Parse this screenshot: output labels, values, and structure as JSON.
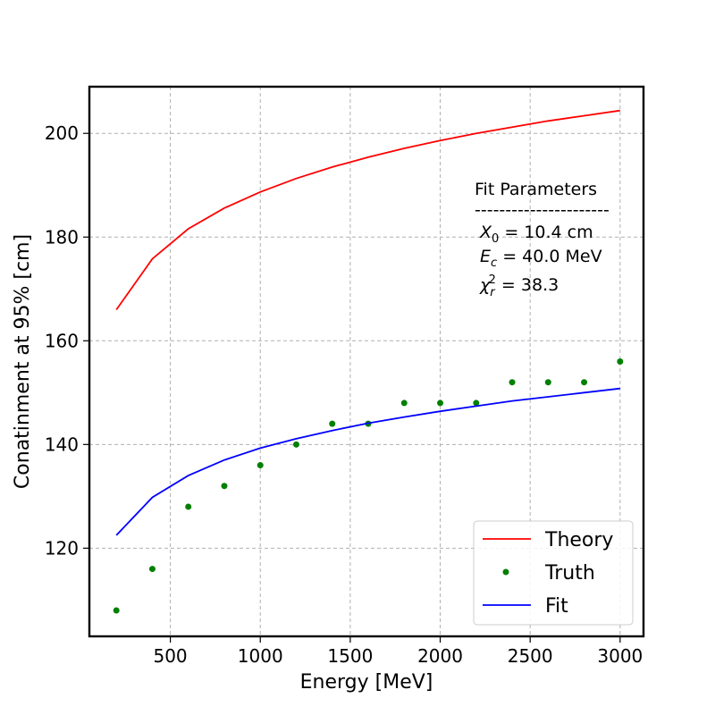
{
  "chart_data": {
    "type": "line",
    "title": "",
    "xlabel": "Energy [MeV]",
    "ylabel": "Conatinment at 95% [cm]",
    "xlim": [
      50,
      3130
    ],
    "ylim": [
      103,
      209
    ],
    "xticks": [
      500,
      1000,
      1500,
      2000,
      2500,
      3000
    ],
    "yticks": [
      120,
      140,
      160,
      180,
      200
    ],
    "grid": true,
    "legend_position": "bottom-right",
    "x": [
      200,
      400,
      600,
      800,
      1000,
      1200,
      1400,
      1600,
      1800,
      2000,
      2200,
      2400,
      2600,
      2800,
      3000
    ],
    "series": [
      {
        "name": "Theory",
        "kind": "line",
        "color": "#ff0000",
        "values": [
          166.0,
          175.8,
          181.6,
          185.6,
          188.7,
          191.3,
          193.5,
          195.4,
          197.1,
          198.6,
          200.0,
          201.2,
          202.4,
          203.4,
          204.4
        ]
      },
      {
        "name": "Truth",
        "kind": "scatter",
        "color": "#008000",
        "values": [
          108,
          116,
          128,
          132,
          136,
          140,
          144,
          144,
          148,
          148,
          148,
          152,
          152,
          152,
          156
        ]
      },
      {
        "name": "Fit",
        "kind": "line",
        "color": "#0000ff",
        "values": [
          122.5,
          129.8,
          134.0,
          137.0,
          139.3,
          141.1,
          142.7,
          144.1,
          145.3,
          146.4,
          147.4,
          148.4,
          149.2,
          150.0,
          150.8
        ]
      }
    ],
    "annotation": {
      "heading": "Fit Parameters",
      "separator": "----------------------",
      "lines": [
        "X0 = 10.4 cm",
        "Ec = 40.0 MeV",
        "χr2 = 38.3"
      ]
    }
  }
}
